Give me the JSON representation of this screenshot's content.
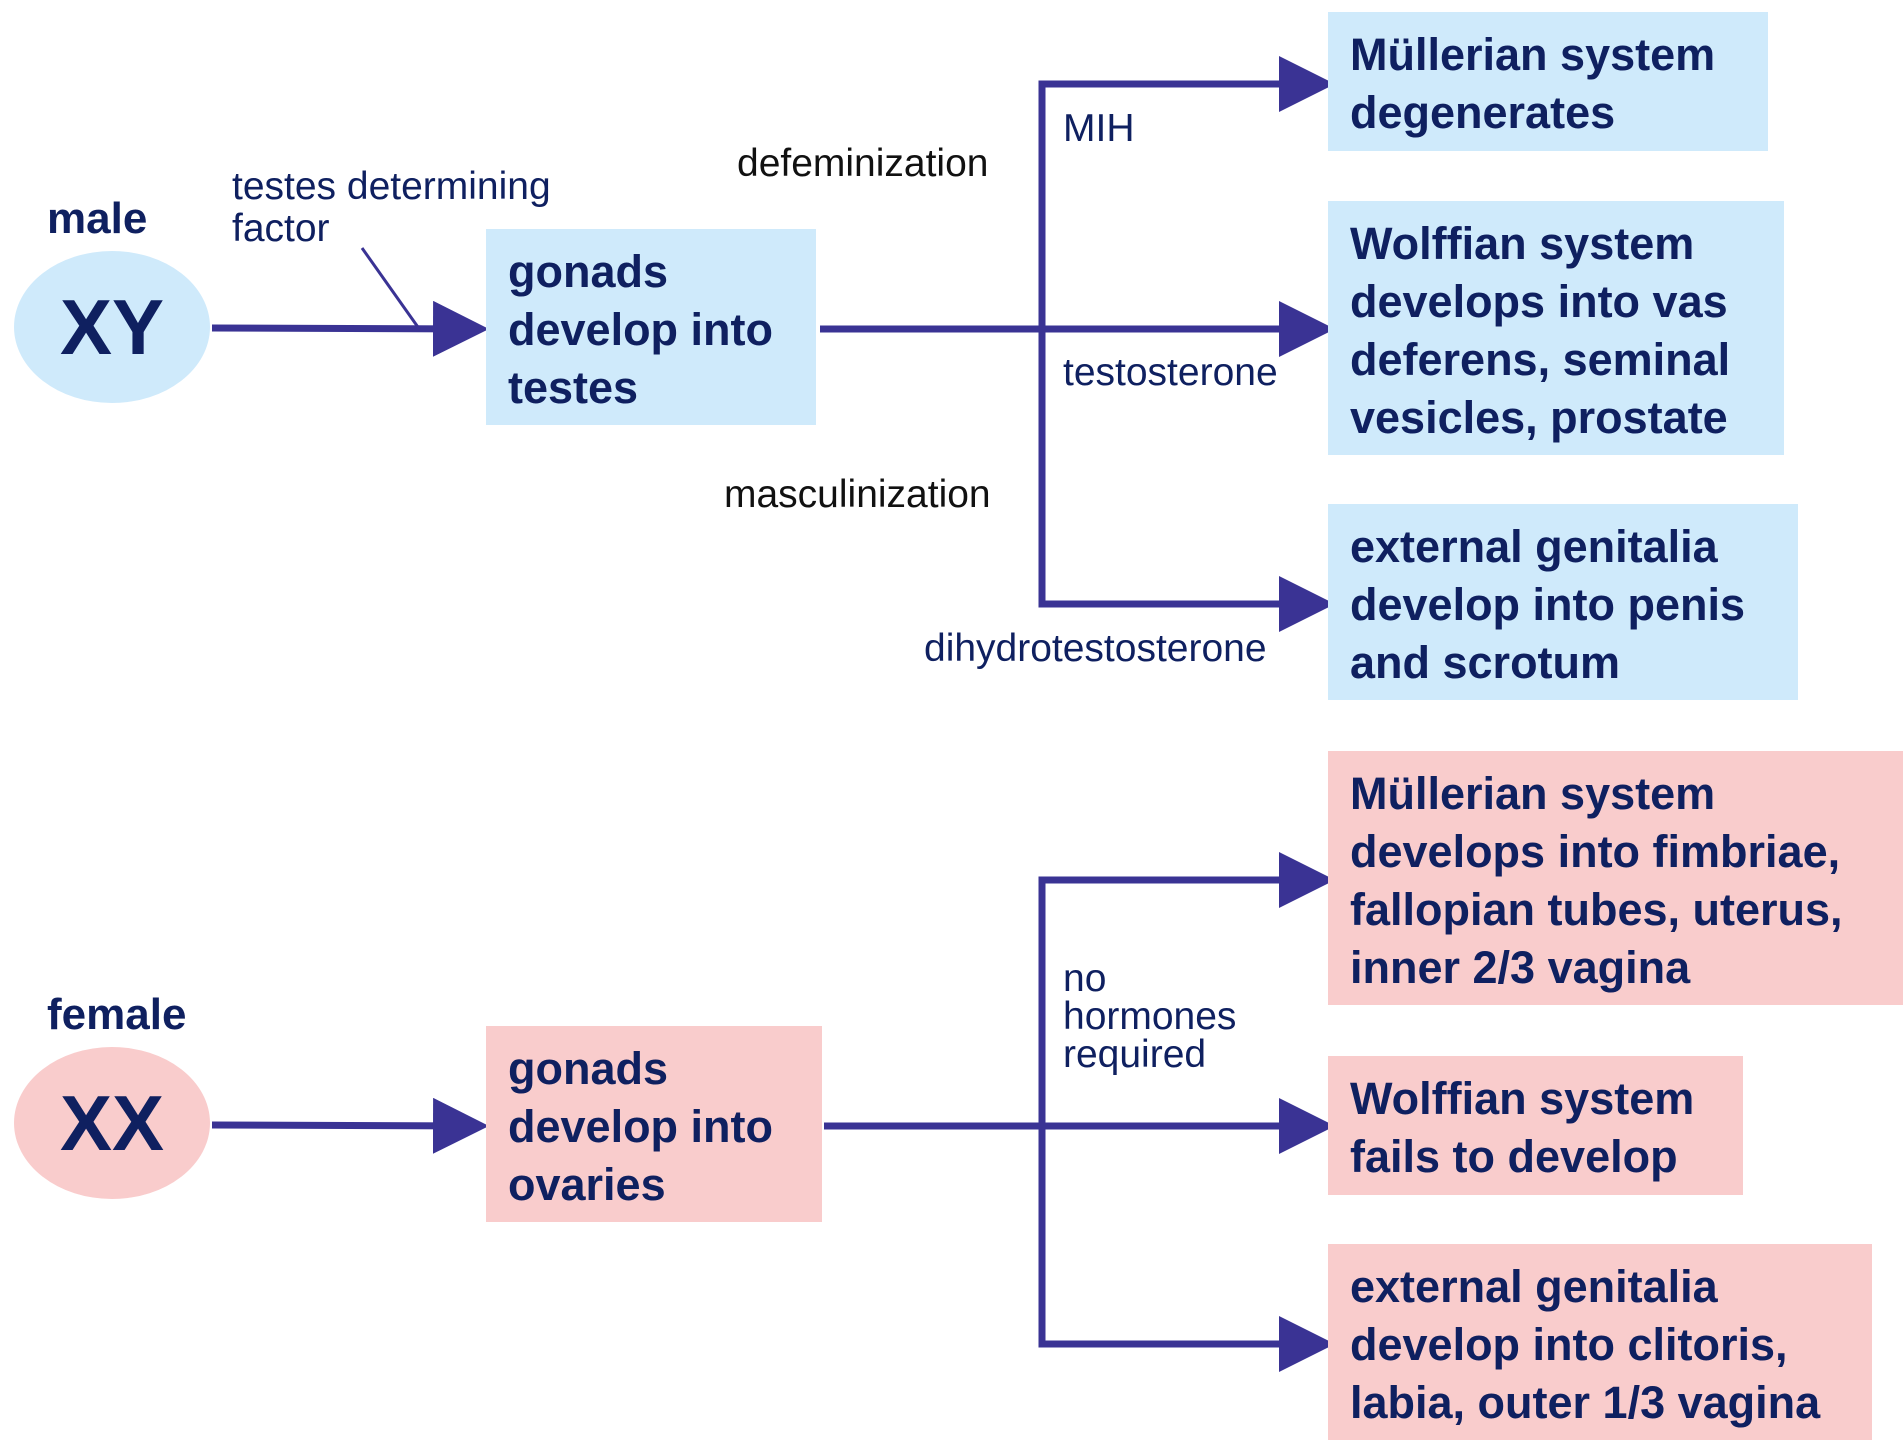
{
  "colors": {
    "arrow": "#3a3394",
    "text": "#0f2060",
    "male_fill": "#cfeafb",
    "female_fill": "#f9cccc"
  },
  "male": {
    "sex_label": "male",
    "chromosomes": "XY",
    "factor_label_line1": "testes determining",
    "factor_label_line2": "factor",
    "gonad_box": [
      "gonads",
      "develop into",
      "testes"
    ],
    "defeminization_label": "defeminization",
    "masculinization_label": "masculinization",
    "hormone_mih": "MIH",
    "hormone_testosterone": "testosterone",
    "hormone_dht": "dihydrotestosterone",
    "outcome_mullerian": [
      "Müllerian system",
      "degenerates"
    ],
    "outcome_wolffian": [
      "Wolffian system",
      "develops into vas",
      "deferens, seminal",
      "vesicles, prostate"
    ],
    "outcome_external": [
      "external genitalia",
      "develop into penis",
      "and scrotum"
    ]
  },
  "female": {
    "sex_label": "female",
    "chromosomes": "XX",
    "gonad_box": [
      "gonads",
      "develop into",
      "ovaries"
    ],
    "hormone_label": [
      "no",
      "hormones",
      "required"
    ],
    "outcome_mullerian": [
      "Müllerian system",
      "develops into fimbriae,",
      "fallopian tubes, uterus,",
      "inner 2/3 vagina"
    ],
    "outcome_wolffian": [
      "Wolffian system",
      "fails to develop"
    ],
    "outcome_external": [
      "external genitalia",
      "develop into clitoris,",
      "labia, outer 1/3 vagina"
    ]
  }
}
